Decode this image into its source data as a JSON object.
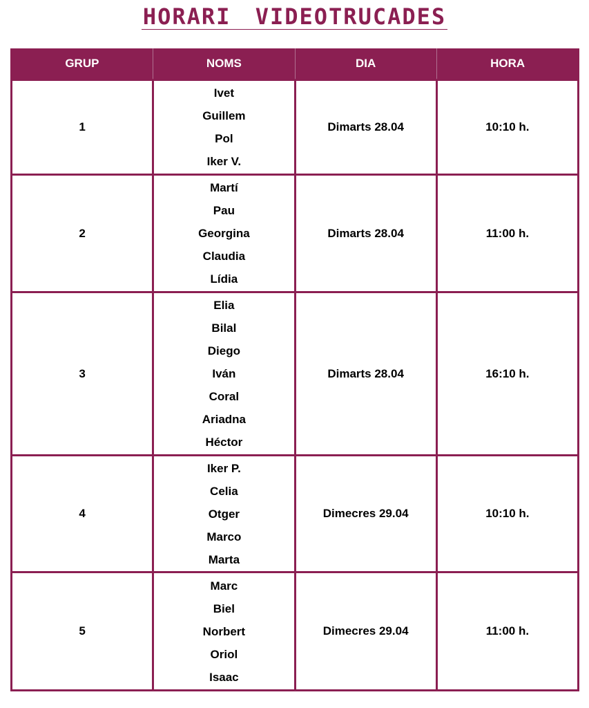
{
  "title": "HORARI VIDEOTRUCADES",
  "colors": {
    "accent": "#8b1f52"
  },
  "table": {
    "headers": [
      "GRUP",
      "NOMS",
      "DIA",
      "HORA"
    ],
    "rows": [
      {
        "grup": "1",
        "noms": [
          "Ivet",
          "Guillem",
          "Pol",
          "Iker V."
        ],
        "dia": "Dimarts 28.04",
        "hora": "10:10 h."
      },
      {
        "grup": "2",
        "noms": [
          "Martí",
          "Pau",
          "Georgina",
          "Claudia",
          "Lídia"
        ],
        "dia": "Dimarts 28.04",
        "hora": "11:00 h."
      },
      {
        "grup": "3",
        "noms": [
          "Elia",
          "Bilal",
          "Diego",
          "Iván",
          "Coral",
          "Ariadna",
          "Héctor"
        ],
        "dia": "Dimarts 28.04",
        "hora": "16:10 h."
      },
      {
        "grup": "4",
        "noms": [
          "Iker P.",
          "Celia",
          "Otger",
          "Marco",
          "Marta"
        ],
        "dia": "Dimecres 29.04",
        "hora": "10:10 h."
      },
      {
        "grup": "5",
        "noms": [
          "Marc",
          "Biel",
          "Norbert",
          "Oriol",
          "Isaac"
        ],
        "dia": "Dimecres 29.04",
        "hora": "11:00 h."
      }
    ]
  }
}
